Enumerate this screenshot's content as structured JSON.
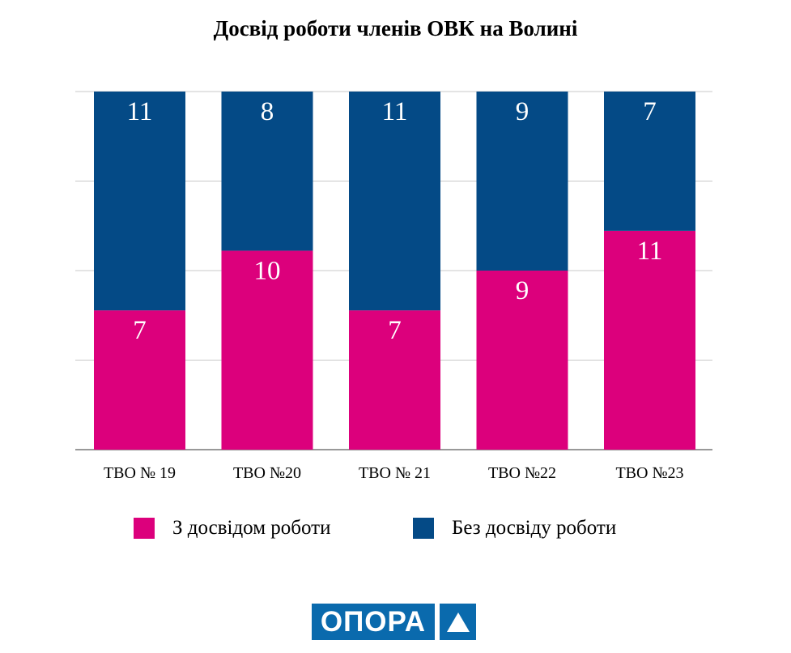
{
  "chart_data": {
    "type": "bar",
    "stacked": "percent",
    "title": "Досвід роботи членів ОВК на Волині",
    "categories": [
      "ТВО № 19",
      "ТВО №20",
      "ТВО № 21",
      "ТВО №22",
      "ТВО №23"
    ],
    "series": [
      {
        "name": "З досвідом роботи",
        "color": "#dc007c",
        "values": [
          7,
          10,
          7,
          9,
          11
        ]
      },
      {
        "name": "Без досвіду роботи",
        "color": "#044a86",
        "values": [
          11,
          8,
          11,
          9,
          7
        ]
      }
    ],
    "ylim": [
      0,
      100
    ],
    "grid": true,
    "legend": "bottom"
  },
  "logo": {
    "text": "ОПОРА"
  }
}
